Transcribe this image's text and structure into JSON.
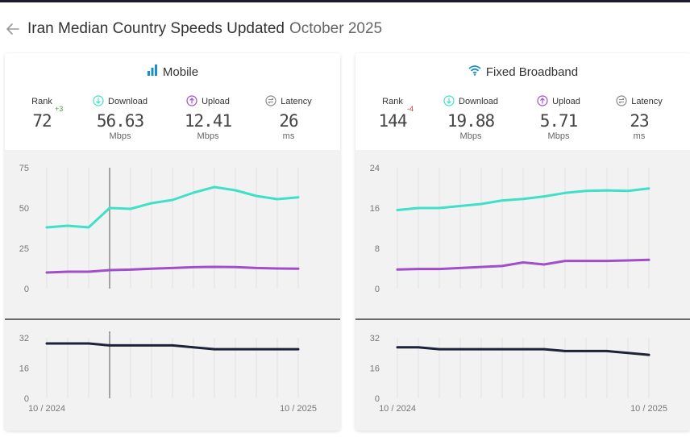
{
  "header": {
    "title": "Iran Median Country Speeds Updated",
    "date": "October 2025"
  },
  "colors": {
    "download": "#40e0c8",
    "upload": "#a14ecb",
    "latency": "#1c2238",
    "grid": "#e2e2e2",
    "plot_bg": "#f2f2f2",
    "accent": "#1a8fc9"
  },
  "panels": [
    {
      "id": "mobile",
      "title": "Mobile",
      "icon": "signal-bars-icon",
      "stats": {
        "rank": {
          "label": "Rank",
          "value": "72",
          "change": "+3"
        },
        "download": {
          "label": "Download",
          "value": "56.63",
          "unit": "Mbps"
        },
        "upload": {
          "label": "Upload",
          "value": "12.41",
          "unit": "Mbps"
        },
        "latency": {
          "label": "Latency",
          "value": "26",
          "unit": "ms"
        }
      }
    },
    {
      "id": "fixed",
      "title": "Fixed Broadband",
      "icon": "wifi-icon",
      "stats": {
        "rank": {
          "label": "Rank",
          "value": "144",
          "change": "-4"
        },
        "download": {
          "label": "Download",
          "value": "19.88",
          "unit": "Mbps"
        },
        "upload": {
          "label": "Upload",
          "value": "5.71",
          "unit": "Mbps"
        },
        "latency": {
          "label": "Latency",
          "value": "23",
          "unit": "ms"
        }
      }
    }
  ],
  "chart_data": [
    {
      "type": "line",
      "panel": "mobile",
      "chart": "speed",
      "x": [
        "10/2024",
        "11/2024",
        "12/2024",
        "01/2025",
        "02/2025",
        "03/2025",
        "04/2025",
        "05/2025",
        "06/2025",
        "07/2025",
        "08/2025",
        "09/2025",
        "10/2025"
      ],
      "series": [
        {
          "values": [
            38,
            39,
            38,
            50,
            49.5,
            53,
            55,
            59.5,
            63,
            61,
            57.5,
            55.5,
            56.63
          ],
          "color": "#40e0c8"
        },
        {
          "values": [
            10,
            10.5,
            10.5,
            11.5,
            11.8,
            12.4,
            12.8,
            13.3,
            13.5,
            13.4,
            12.8,
            12.5,
            12.41
          ],
          "color": "#a14ecb"
        }
      ],
      "yticks": [
        0,
        25,
        50,
        75
      ],
      "ylim": [
        0,
        75
      ],
      "cursor_index": 3
    },
    {
      "type": "line",
      "panel": "mobile",
      "chart": "latency",
      "x": [
        "10/2024",
        "11/2024",
        "12/2024",
        "01/2025",
        "02/2025",
        "03/2025",
        "04/2025",
        "05/2025",
        "06/2025",
        "07/2025",
        "08/2025",
        "09/2025",
        "10/2025"
      ],
      "series": [
        {
          "values": [
            29,
            29,
            29,
            28,
            28,
            28,
            28,
            27,
            26,
            26,
            26,
            26,
            26
          ],
          "color": "#1c2238"
        }
      ],
      "yticks": [
        0,
        16,
        32
      ],
      "ylim": [
        0,
        32
      ],
      "xtick_labels": [
        "10 / 2024",
        "10 / 2025"
      ],
      "cursor_index": 3
    },
    {
      "type": "line",
      "panel": "fixed",
      "chart": "speed",
      "x": [
        "10/2024",
        "11/2024",
        "12/2024",
        "01/2025",
        "02/2025",
        "03/2025",
        "04/2025",
        "05/2025",
        "06/2025",
        "07/2025",
        "08/2025",
        "09/2025",
        "10/2025"
      ],
      "series": [
        {
          "values": [
            15.6,
            16,
            16,
            16.4,
            16.8,
            17.5,
            17.8,
            18.3,
            19,
            19.4,
            19.5,
            19.4,
            19.88
          ],
          "color": "#40e0c8"
        },
        {
          "values": [
            3.8,
            3.9,
            3.9,
            4.1,
            4.3,
            4.5,
            5.2,
            4.8,
            5.5,
            5.5,
            5.5,
            5.6,
            5.71
          ],
          "color": "#a14ecb"
        }
      ],
      "yticks": [
        0,
        8,
        16,
        24
      ],
      "ylim": [
        0,
        24
      ]
    },
    {
      "type": "line",
      "panel": "fixed",
      "chart": "latency",
      "x": [
        "10/2024",
        "11/2024",
        "12/2024",
        "01/2025",
        "02/2025",
        "03/2025",
        "04/2025",
        "05/2025",
        "06/2025",
        "07/2025",
        "08/2025",
        "09/2025",
        "10/2025"
      ],
      "series": [
        {
          "values": [
            27,
            27,
            26,
            26,
            26,
            26,
            26,
            26,
            25,
            25,
            25,
            24,
            23
          ],
          "color": "#1c2238"
        }
      ],
      "yticks": [
        0,
        16,
        32
      ],
      "ylim": [
        0,
        32
      ],
      "xtick_labels": [
        "10 / 2024",
        "10 / 2025"
      ]
    }
  ]
}
